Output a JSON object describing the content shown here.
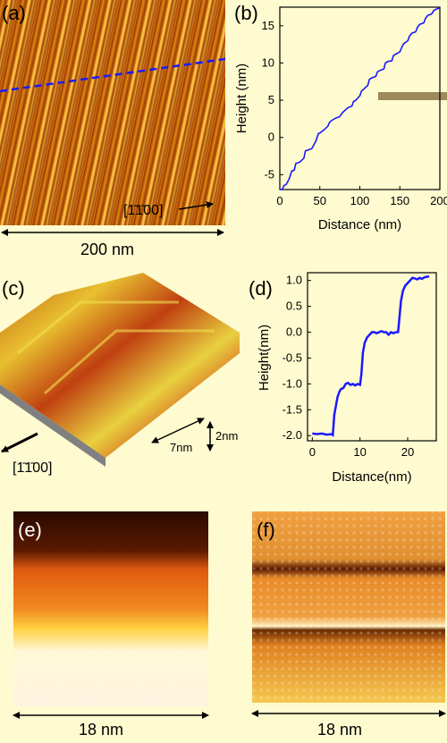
{
  "panels": {
    "a": {
      "label": "(a)",
      "direction_label": "[1̄1̄00]",
      "scale_label": "200 nm"
    },
    "b": {
      "label": "(b)"
    },
    "c": {
      "label": "(c)",
      "direction_label": "[1̄1̄00]",
      "dim_width": "7nm",
      "dim_height": "2nm"
    },
    "d": {
      "label": "(d)"
    },
    "e": {
      "label": "(e)",
      "scale_label": "18 nm"
    },
    "f": {
      "label": "(f)",
      "scale_label": "18 nm"
    }
  },
  "colors": {
    "background": "#fefbd0",
    "profile_line": "#1a1aff",
    "marker_bar": "#9c8a5a"
  },
  "chart_data": [
    {
      "id": "b",
      "type": "line",
      "title": "",
      "xlabel": "Distance (nm)",
      "ylabel": "Height (nm)",
      "xlim": [
        0,
        200
      ],
      "ylim": [
        -7,
        17.5
      ],
      "xticks": [
        0,
        50,
        100,
        150,
        200
      ],
      "yticks": [
        -5,
        0,
        5,
        10,
        15
      ],
      "grid": false,
      "series": [
        {
          "x": [
            0,
            3,
            5,
            8,
            12,
            15,
            18,
            20,
            25,
            30,
            32,
            35,
            40,
            45,
            48,
            50,
            55,
            60,
            62,
            65,
            70,
            75,
            78,
            80,
            85,
            90,
            92,
            95,
            100,
            102,
            105,
            110,
            112,
            115,
            120,
            122,
            125,
            130,
            132,
            135,
            140,
            142,
            145,
            150,
            152,
            155,
            160,
            162,
            165,
            170,
            172,
            175,
            180,
            182,
            185,
            190,
            192,
            195,
            200
          ],
          "y": [
            -7,
            -7,
            -6.5,
            -6.3,
            -5.5,
            -4.5,
            -4.4,
            -3.5,
            -3.3,
            -2.8,
            -1.8,
            -1.7,
            -1.5,
            -0.5,
            0.5,
            0.6,
            1.0,
            1.5,
            2.0,
            2.3,
            2.6,
            2.8,
            3.3,
            3.5,
            4.0,
            4.2,
            4.8,
            5.0,
            5.6,
            6.2,
            6.5,
            7.0,
            7.8,
            8.0,
            8.2,
            8.8,
            9.0,
            9.2,
            10.0,
            10.2,
            10.3,
            11.0,
            11.2,
            11.5,
            12.0,
            12.6,
            13.0,
            13.6,
            14.0,
            14.2,
            14.8,
            15.2,
            15.4,
            16.0,
            16.4,
            16.6,
            17.0,
            17.2,
            17.4
          ]
        }
      ]
    },
    {
      "id": "d",
      "type": "line",
      "title": "",
      "xlabel": "Distance(nm)",
      "ylabel": "Height(nm)",
      "xlim": [
        -1,
        26
      ],
      "ylim": [
        -2.1,
        1.15
      ],
      "xticks": [
        0,
        10,
        20
      ],
      "yticks": [
        -2.0,
        -1.5,
        -1.0,
        -0.5,
        0.0,
        0.5,
        1.0
      ],
      "ytick_labels": [
        "-2.0",
        "-1.5",
        "-1.0",
        "-0.5",
        "0.0",
        "0.5",
        "1.0"
      ],
      "grid": false,
      "series": [
        {
          "x": [
            0,
            1,
            2,
            3,
            4,
            4.3,
            4.6,
            5,
            5.3,
            5.7,
            6,
            6.5,
            7,
            7.5,
            8,
            8.5,
            9,
            9.5,
            10,
            10.3,
            10.6,
            11,
            11.5,
            12,
            12.5,
            13,
            13.5,
            14,
            14.5,
            15,
            15.5,
            16,
            16.5,
            17,
            17.5,
            18,
            18.3,
            18.6,
            19,
            19.5,
            20,
            20.5,
            21,
            21.5,
            22,
            22.5,
            23,
            23.5,
            24,
            24.5
          ],
          "y": [
            -1.96,
            -1.97,
            -1.96,
            -1.98,
            -1.97,
            -1.99,
            -1.6,
            -1.4,
            -1.25,
            -1.15,
            -1.1,
            -1.08,
            -1.0,
            -0.98,
            -1.02,
            -1.0,
            -1.03,
            -1.0,
            -1.02,
            -0.8,
            -0.4,
            -0.2,
            -0.1,
            -0.05,
            0.0,
            0.0,
            -0.02,
            0.0,
            0.02,
            0.0,
            0.0,
            -0.05,
            0.0,
            -0.02,
            0.0,
            0.0,
            0.3,
            0.6,
            0.8,
            0.9,
            0.95,
            1.0,
            1.05,
            1.04,
            1.02,
            1.05,
            1.03,
            1.06,
            1.07,
            1.08
          ]
        }
      ]
    }
  ]
}
